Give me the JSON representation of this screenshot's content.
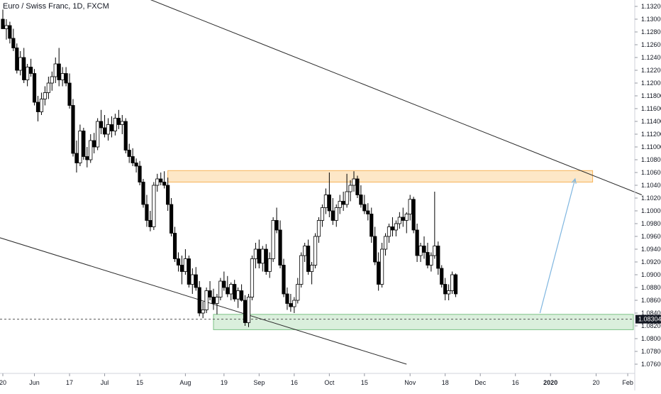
{
  "title": "Euro / Swiss Franc, 1D, FXCM",
  "colors": {
    "background": "#ffffff",
    "candle": "#000000",
    "candle_up_fill": "#ffffff",
    "candle_down_fill": "#000000",
    "trendline": "#2a2a2a",
    "resistance_zone_fill": "#fde3bd",
    "resistance_zone_stroke": "#f7b45a",
    "support_zone_fill": "#d4ecd6",
    "support_zone_stroke": "#7cc285",
    "projection_arrow": "#7fb6e0",
    "price_badge_bg": "#131722",
    "price_badge_text": "#ffffff",
    "axis_text": "#131722"
  },
  "chart_data": {
    "type": "candlestick",
    "symbol": "Euro / Swiss Franc, 1D, FXCM",
    "y_range": [
      1.075,
      1.133
    ],
    "y_ticks": [
      "1.13200",
      "1.13000",
      "1.12800",
      "1.12600",
      "1.12400",
      "1.12200",
      "1.12000",
      "1.11800",
      "1.11600",
      "1.11400",
      "1.11200",
      "1.11000",
      "1.10800",
      "1.10600",
      "1.10400",
      "1.10200",
      "1.10000",
      "1.09800",
      "1.09600",
      "1.09400",
      "1.09200",
      "1.09000",
      "1.08800",
      "1.08600",
      "1.08400",
      "1.08200",
      "1.08000",
      "1.07800",
      "1.07600"
    ],
    "x_ticks": [
      {
        "label": "20",
        "bar": 0
      },
      {
        "label": "Jun",
        "bar": 9
      },
      {
        "label": "17",
        "bar": 19
      },
      {
        "label": "Jul",
        "bar": 29
      },
      {
        "label": "15",
        "bar": 39
      },
      {
        "label": "Aug",
        "bar": 52
      },
      {
        "label": "19",
        "bar": 63
      },
      {
        "label": "Sep",
        "bar": 73
      },
      {
        "label": "16",
        "bar": 83
      },
      {
        "label": "Oct",
        "bar": 93
      },
      {
        "label": "15",
        "bar": 103
      },
      {
        "label": "Nov",
        "bar": 116
      },
      {
        "label": "18",
        "bar": 126
      },
      {
        "label": "Dec",
        "bar": 136
      },
      {
        "label": "16",
        "bar": 146
      },
      {
        "label": "2020",
        "bar": 156
      },
      {
        "label": "20",
        "bar": 169
      },
      {
        "label": "Feb",
        "bar": 178
      }
    ],
    "bars_total_visible": 182,
    "candles": [
      [
        1.13,
        1.1315,
        1.129,
        1.1285
      ],
      [
        1.1285,
        1.13,
        1.1268,
        1.129
      ],
      [
        1.129,
        1.1296,
        1.1262,
        1.127
      ],
      [
        1.127,
        1.1285,
        1.125,
        1.1255
      ],
      [
        1.1255,
        1.1262,
        1.1215,
        1.122
      ],
      [
        1.122,
        1.125,
        1.1212,
        1.124
      ],
      [
        1.124,
        1.1255,
        1.12,
        1.1205
      ],
      [
        1.1205,
        1.123,
        1.1195,
        1.1225
      ],
      [
        1.1225,
        1.1238,
        1.121,
        1.1215
      ],
      [
        1.1215,
        1.1222,
        1.1165,
        1.117
      ],
      [
        1.117,
        1.118,
        1.114,
        1.1155
      ],
      [
        1.1155,
        1.1185,
        1.115,
        1.1175
      ],
      [
        1.1175,
        1.1195,
        1.1165,
        1.1185
      ],
      [
        1.1185,
        1.121,
        1.1175,
        1.12
      ],
      [
        1.12,
        1.1218,
        1.1188,
        1.121
      ],
      [
        1.121,
        1.124,
        1.12,
        1.123
      ],
      [
        1.123,
        1.1255,
        1.1195,
        1.1205
      ],
      [
        1.1205,
        1.1225,
        1.1195,
        1.1215
      ],
      [
        1.1215,
        1.1225,
        1.1195,
        1.12
      ],
      [
        1.12,
        1.1215,
        1.116,
        1.1165
      ],
      [
        1.1165,
        1.1175,
        1.1085,
        1.109
      ],
      [
        1.109,
        1.111,
        1.106,
        1.1075
      ],
      [
        1.1075,
        1.1135,
        1.107,
        1.1125
      ],
      [
        1.1125,
        1.113,
        1.108,
        1.1085
      ],
      [
        1.1085,
        1.11,
        1.1068,
        1.108
      ],
      [
        1.108,
        1.112,
        1.1075,
        1.111
      ],
      [
        1.111,
        1.1122,
        1.109,
        1.11
      ],
      [
        1.11,
        1.1145,
        1.1095,
        1.114
      ],
      [
        1.114,
        1.1158,
        1.112,
        1.113
      ],
      [
        1.113,
        1.115,
        1.1115,
        1.112
      ],
      [
        1.112,
        1.1145,
        1.111,
        1.1135
      ],
      [
        1.1135,
        1.1148,
        1.1115,
        1.1125
      ],
      [
        1.1125,
        1.1152,
        1.1118,
        1.1145
      ],
      [
        1.1145,
        1.1158,
        1.1128,
        1.1135
      ],
      [
        1.1135,
        1.115,
        1.112,
        1.114
      ],
      [
        1.114,
        1.1145,
        1.109,
        1.1095
      ],
      [
        1.1095,
        1.1105,
        1.1075,
        1.1085
      ],
      [
        1.1085,
        1.1098,
        1.107,
        1.1075
      ],
      [
        1.1075,
        1.1082,
        1.106,
        1.107
      ],
      [
        1.107,
        1.1078,
        1.104,
        1.1045
      ],
      [
        1.1045,
        1.105,
        1.1005,
        1.101
      ],
      [
        1.101,
        1.1025,
        1.0975,
        1.0985
      ],
      [
        1.0985,
        1.1,
        1.0968,
        1.0975
      ],
      [
        1.0975,
        1.1045,
        1.097,
        1.104
      ],
      [
        1.104,
        1.1058,
        1.103,
        1.105
      ],
      [
        1.105,
        1.106,
        1.104,
        1.1045
      ],
      [
        1.1045,
        1.1062,
        1.1035,
        1.104
      ],
      [
        1.104,
        1.1052,
        1.1,
        1.101
      ],
      [
        1.101,
        1.102,
        1.096,
        1.0965
      ],
      [
        1.0965,
        1.0975,
        1.092,
        1.0925
      ],
      [
        1.0925,
        1.0935,
        1.0905,
        1.0915
      ],
      [
        1.0915,
        1.093,
        1.0885,
        1.0905
      ],
      [
        1.0905,
        1.094,
        1.09,
        1.0925
      ],
      [
        1.0925,
        1.093,
        1.088,
        1.0885
      ],
      [
        1.0885,
        1.091,
        1.087,
        1.09
      ],
      [
        1.09,
        1.0912,
        1.0875,
        1.088
      ],
      [
        1.088,
        1.089,
        1.0835,
        1.084
      ],
      [
        1.084,
        1.0858,
        1.0832,
        1.0845
      ],
      [
        1.0845,
        1.088,
        1.084,
        1.0875
      ],
      [
        1.0875,
        1.089,
        1.086,
        1.0865
      ],
      [
        1.0865,
        1.0878,
        1.0845,
        1.0855
      ],
      [
        1.0855,
        1.087,
        1.0838,
        1.0865
      ],
      [
        1.0865,
        1.0895,
        1.086,
        1.089
      ],
      [
        1.089,
        1.0905,
        1.0875,
        1.088
      ],
      [
        1.088,
        1.0898,
        1.0865,
        1.087
      ],
      [
        1.087,
        1.0888,
        1.086,
        1.0885
      ],
      [
        1.0885,
        1.0892,
        1.0858,
        1.0862
      ],
      [
        1.0862,
        1.088,
        1.0848,
        1.0875
      ],
      [
        1.0875,
        1.0885,
        1.0858,
        1.086
      ],
      [
        1.086,
        1.0868,
        1.082,
        1.0825
      ],
      [
        1.0825,
        1.087,
        1.0818,
        1.0865
      ],
      [
        1.0865,
        1.093,
        1.086,
        1.0925
      ],
      [
        1.0925,
        1.095,
        1.091,
        1.094
      ],
      [
        1.094,
        1.0955,
        1.091,
        1.0918
      ],
      [
        1.0918,
        1.0945,
        1.0905,
        1.094
      ],
      [
        1.094,
        1.0948,
        1.09,
        1.0905
      ],
      [
        1.0905,
        1.0935,
        1.0895,
        1.0925
      ],
      [
        1.0925,
        1.099,
        1.092,
        1.0985
      ],
      [
        1.0985,
        1.1005,
        1.0965,
        1.097
      ],
      [
        1.097,
        1.0985,
        1.091,
        1.0915
      ],
      [
        1.0915,
        1.0925,
        1.0865,
        1.087
      ],
      [
        1.087,
        1.088,
        1.0845,
        1.0855
      ],
      [
        1.0855,
        1.087,
        1.0842,
        1.085
      ],
      [
        1.085,
        1.0865,
        1.084,
        1.086
      ],
      [
        1.086,
        1.0895,
        1.0855,
        1.0885
      ],
      [
        1.0885,
        1.0935,
        1.088,
        1.093
      ],
      [
        1.093,
        1.095,
        1.092,
        1.0945
      ],
      [
        1.0945,
        1.0955,
        1.09,
        1.0905
      ],
      [
        1.0905,
        1.092,
        1.0885,
        1.0915
      ],
      [
        1.0915,
        1.0965,
        1.091,
        1.096
      ],
      [
        1.096,
        1.099,
        1.095,
        1.0985
      ],
      [
        1.0985,
        1.101,
        1.0975,
        1.1005
      ],
      [
        1.1005,
        1.1035,
        1.0995,
        1.1025
      ],
      [
        1.1025,
        1.106,
        1.099,
        1.1
      ],
      [
        1.1,
        1.102,
        1.0978,
        1.0985
      ],
      [
        1.0985,
        1.101,
        1.0975,
        1.1005
      ],
      [
        1.1005,
        1.1025,
        1.0995,
        1.1015
      ],
      [
        1.1015,
        1.103,
        1.1,
        1.101
      ],
      [
        1.101,
        1.1058,
        1.1005,
        1.103
      ],
      [
        1.103,
        1.1048,
        1.1015,
        1.104
      ],
      [
        1.104,
        1.1062,
        1.103,
        1.105
      ],
      [
        1.105,
        1.1055,
        1.102,
        1.1025
      ],
      [
        1.1025,
        1.104,
        1.1005,
        1.101
      ],
      [
        1.101,
        1.1025,
        1.0995,
        1.1
      ],
      [
        1.1,
        1.1012,
        1.0985,
        1.0995
      ],
      [
        1.0995,
        1.1005,
        1.095,
        1.096
      ],
      [
        1.096,
        1.0975,
        1.0915,
        1.092
      ],
      [
        1.092,
        1.0935,
        1.0875,
        1.0885
      ],
      [
        1.0885,
        1.095,
        1.088,
        1.094
      ],
      [
        1.094,
        1.0965,
        1.093,
        1.096
      ],
      [
        1.096,
        1.098,
        1.095,
        1.0975
      ],
      [
        1.0975,
        1.099,
        1.096,
        1.097
      ],
      [
        1.097,
        1.0985,
        1.096,
        1.098
      ],
      [
        1.098,
        1.0998,
        1.0972,
        1.099
      ],
      [
        1.099,
        1.1005,
        1.0975,
        1.0985
      ],
      [
        1.0985,
        1.0998,
        1.0965,
        1.0995
      ],
      [
        1.0995,
        1.1025,
        1.0985,
        1.1018
      ],
      [
        1.1018,
        1.1022,
        1.0965,
        1.097
      ],
      [
        1.097,
        1.098,
        1.092,
        1.093
      ],
      [
        1.093,
        1.095,
        1.092,
        1.0945
      ],
      [
        1.0945,
        1.096,
        1.0925,
        1.0935
      ],
      [
        1.0935,
        1.095,
        1.091,
        1.0915
      ],
      [
        1.0915,
        1.0935,
        1.0905,
        1.093
      ],
      [
        1.093,
        1.103,
        1.0925,
        1.0945
      ],
      [
        1.0945,
        1.0952,
        1.09,
        1.091
      ],
      [
        1.091,
        1.0915,
        1.088,
        1.0885
      ],
      [
        1.0885,
        1.0895,
        1.086,
        1.087
      ],
      [
        1.087,
        1.0885,
        1.086,
        1.0875
      ],
      [
        1.0875,
        1.0905,
        1.087,
        1.09
      ],
      [
        1.09,
        1.0902,
        1.0865,
        1.087
      ]
    ],
    "candle_x_bars": [
      0,
      1,
      2,
      3,
      4,
      5,
      6,
      7,
      8,
      9,
      10,
      11,
      12,
      13,
      14,
      15,
      16,
      17,
      18,
      19,
      20,
      21,
      22,
      23,
      24,
      25,
      26,
      27,
      28,
      29,
      30,
      31,
      32,
      33,
      34,
      35,
      36,
      37,
      38,
      39,
      40,
      41,
      42,
      43,
      44,
      45,
      46,
      47,
      48,
      49,
      50,
      51,
      52,
      53,
      54,
      55,
      56,
      57,
      58,
      59,
      60,
      61,
      62,
      63,
      64,
      65,
      66,
      67,
      68,
      69,
      70,
      71,
      72,
      73,
      74,
      75,
      76,
      77,
      78,
      79,
      80,
      81,
      82,
      83,
      84,
      85,
      86,
      87,
      88,
      89,
      90,
      91,
      92,
      93,
      94,
      95,
      96,
      97,
      98,
      99,
      100,
      101,
      102,
      103,
      104,
      105,
      106,
      107,
      108,
      109,
      110,
      111,
      112,
      113,
      114,
      115,
      116,
      117,
      118,
      119,
      120,
      121,
      122,
      123,
      124,
      125,
      126,
      127,
      128,
      129,
      130
    ],
    "resistance_zone": {
      "y_low": 1.1045,
      "y_high": 1.1063,
      "bar_from": 47,
      "bar_to": 168
    },
    "support_zone": {
      "y_low": 1.0814,
      "y_high": 1.0838,
      "bar_from": 60,
      "bar_to": 182
    },
    "trendlines": [
      {
        "from": {
          "bar": 40,
          "y": 1.1335
        },
        "to": {
          "bar": 182,
          "y": 1.1025
        }
      },
      {
        "from": {
          "bar": -5,
          "y": 1.0965
        },
        "to": {
          "bar": 115,
          "y": 1.076
        }
      }
    ],
    "projection_arrow": {
      "from": {
        "bar": 153,
        "y": 1.084
      },
      "to": {
        "bar": 163,
        "y": 1.105
      }
    },
    "current_price": {
      "value": 1.08304,
      "label": "1.08304"
    }
  }
}
